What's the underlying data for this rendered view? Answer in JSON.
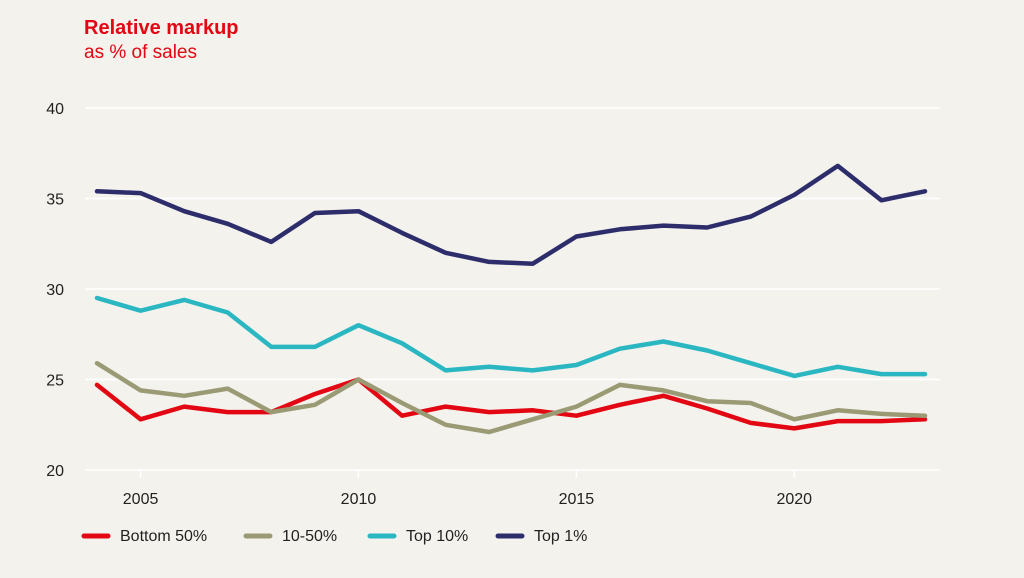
{
  "chart_data": {
    "type": "line",
    "title": "Relative markup",
    "subtitle": "as % of sales",
    "x": [
      2004,
      2005,
      2006,
      2007,
      2008,
      2009,
      2010,
      2011,
      2012,
      2013,
      2014,
      2015,
      2016,
      2017,
      2018,
      2019,
      2020,
      2021,
      2022,
      2023
    ],
    "xticks": [
      "2005",
      "2010",
      "2015",
      "2020"
    ],
    "xtick_values": [
      2005,
      2010,
      2015,
      2020
    ],
    "yticks": [
      "20",
      "25",
      "30",
      "35",
      "40"
    ],
    "ytick_values": [
      20,
      25,
      30,
      35,
      40
    ],
    "xlim": [
      2004,
      2023
    ],
    "ylim": [
      20,
      40
    ],
    "grid": "horizontal",
    "legend_position": "bottom-left",
    "series": [
      {
        "name": "Bottom 50%",
        "color": "#e30613",
        "values": [
          24.7,
          22.8,
          23.5,
          23.2,
          23.2,
          24.2,
          25.0,
          23.0,
          23.5,
          23.2,
          23.3,
          23.0,
          23.6,
          24.1,
          23.4,
          22.6,
          22.3,
          22.7,
          22.7,
          22.8
        ]
      },
      {
        "name": "10-50%",
        "color": "#9a9b74",
        "values": [
          25.9,
          24.4,
          24.1,
          24.5,
          23.2,
          23.6,
          25.0,
          23.7,
          22.5,
          22.1,
          22.8,
          23.5,
          24.7,
          24.4,
          23.8,
          23.7,
          22.8,
          23.3,
          23.1,
          23.0
        ]
      },
      {
        "name": "Top 10%",
        "color": "#2bb7c2",
        "values": [
          29.5,
          28.8,
          29.4,
          28.7,
          26.8,
          26.8,
          28.0,
          27.0,
          25.5,
          25.7,
          25.5,
          25.8,
          26.7,
          27.1,
          26.6,
          25.9,
          25.2,
          25.7,
          25.3,
          25.3
        ]
      },
      {
        "name": "Top 1%",
        "color": "#2e2d6b",
        "values": [
          35.4,
          35.3,
          34.3,
          33.6,
          32.6,
          34.2,
          34.3,
          33.1,
          32.0,
          31.5,
          31.4,
          32.9,
          33.3,
          33.5,
          33.4,
          34.0,
          35.2,
          36.8,
          34.9,
          35.4
        ]
      }
    ]
  }
}
